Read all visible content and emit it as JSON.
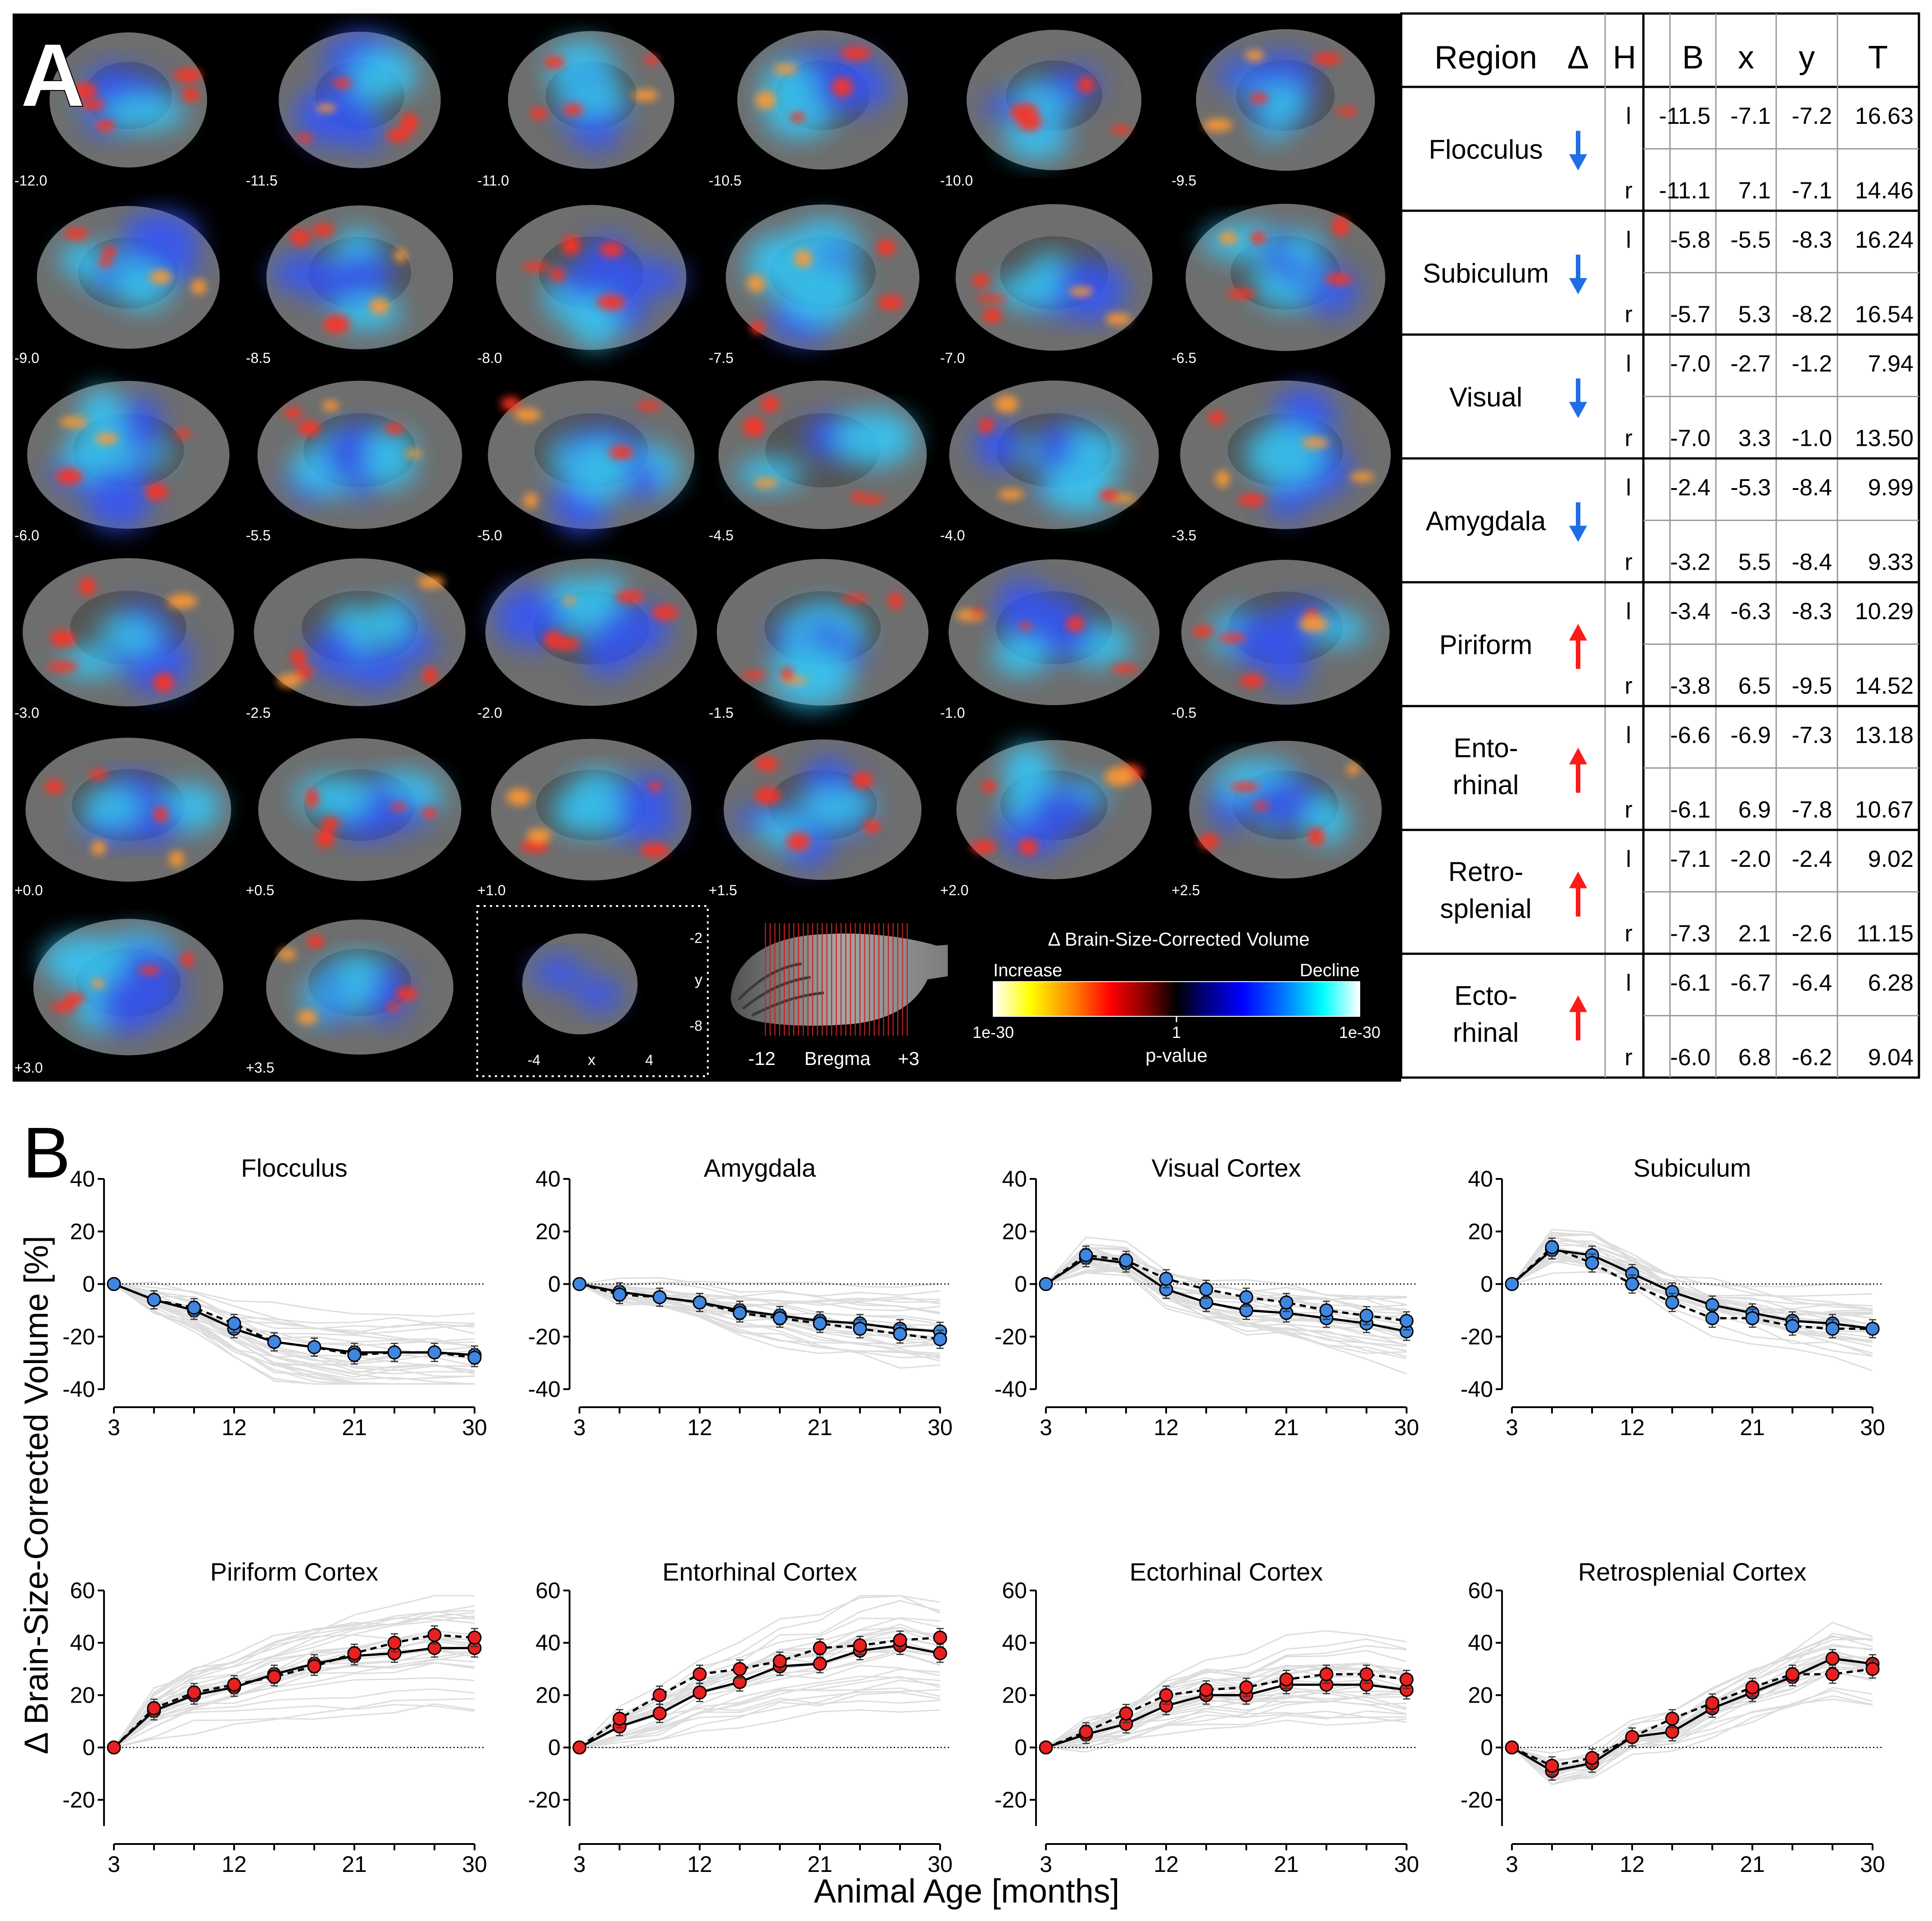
{
  "panel_a": {
    "letter": "A",
    "slice_labels": [
      "-12.0",
      "-11.5",
      "-11.0",
      "-10.5",
      "-10.0",
      "-9.5",
      "-9.0",
      "-8.5",
      "-8.0",
      "-7.5",
      "-7.0",
      "-6.5",
      "-6.0",
      "-5.5",
      "-5.0",
      "-4.5",
      "-4.0",
      "-3.5",
      "-3.0",
      "-2.5",
      "-2.0",
      "-1.5",
      "-1.0",
      "-0.5",
      "+0.0",
      "+0.5",
      "+1.0",
      "+1.5",
      "+2.0",
      "+2.5",
      "+3.0",
      "+3.5"
    ],
    "axis_inset": {
      "y_ticks": [
        "-2",
        "y",
        "-8"
      ],
      "x_ticks": [
        "-4",
        "x",
        "4"
      ]
    },
    "sagittal": {
      "left": "-12",
      "mid": "Bregma",
      "right": "+3"
    },
    "colorbar": {
      "title": "Δ Brain-Size-Corrected Volume",
      "left_label": "Increase",
      "right_label": "Decline",
      "ticks": [
        "1e-30",
        "1",
        "1e-30"
      ],
      "xlabel": "p-value",
      "colors": [
        "#ffffff",
        "#ffff00",
        "#ff8000",
        "#ff0000",
        "#800000",
        "#000000",
        "#000080",
        "#0000ff",
        "#0080ff",
        "#00ffff",
        "#ffffff"
      ]
    }
  },
  "table": {
    "headers": [
      "Region",
      "Δ",
      "H",
      "B",
      "x",
      "y",
      "T"
    ],
    "rows": [
      {
        "region": [
          "Flocculus"
        ],
        "dir": "down",
        "l": [
          "-11.5",
          "-7.1",
          "-7.2",
          "16.63"
        ],
        "r": [
          "-11.1",
          "7.1",
          "-7.1",
          "14.46"
        ]
      },
      {
        "region": [
          "Subiculum"
        ],
        "dir": "down",
        "l": [
          "-5.8",
          "-5.5",
          "-8.3",
          "16.24"
        ],
        "r": [
          "-5.7",
          "5.3",
          "-8.2",
          "16.54"
        ]
      },
      {
        "region": [
          "Visual"
        ],
        "dir": "down",
        "l": [
          "-7.0",
          "-2.7",
          "-1.2",
          "7.94"
        ],
        "r": [
          "-7.0",
          "3.3",
          "-1.0",
          "13.50"
        ]
      },
      {
        "region": [
          "Amygdala"
        ],
        "dir": "down",
        "l": [
          "-2.4",
          "-5.3",
          "-8.4",
          "9.99"
        ],
        "r": [
          "-3.2",
          "5.5",
          "-8.4",
          "9.33"
        ]
      },
      {
        "region": [
          "Piriform"
        ],
        "dir": "up",
        "l": [
          "-3.4",
          "-6.3",
          "-8.3",
          "10.29"
        ],
        "r": [
          "-3.8",
          "6.5",
          "-9.5",
          "14.52"
        ]
      },
      {
        "region": [
          "Ento-",
          "rhinal"
        ],
        "dir": "up",
        "l": [
          "-6.6",
          "-6.9",
          "-7.3",
          "13.18"
        ],
        "r": [
          "-6.1",
          "6.9",
          "-7.8",
          "10.67"
        ]
      },
      {
        "region": [
          "Retro-",
          "splenial"
        ],
        "dir": "up",
        "l": [
          "-7.1",
          "-2.0",
          "-2.4",
          "9.02"
        ],
        "r": [
          "-7.3",
          "2.1",
          "-2.6",
          "11.15"
        ]
      },
      {
        "region": [
          "Ecto-",
          "rhinal"
        ],
        "dir": "up",
        "l": [
          "-6.1",
          "-6.7",
          "-6.4",
          "6.28"
        ],
        "r": [
          "-6.0",
          "6.8",
          "-6.2",
          "9.04"
        ]
      }
    ],
    "hemis": [
      "l",
      "r"
    ],
    "arrow_colors": {
      "down": "#1e6fe6",
      "up": "#ff1a1a"
    }
  },
  "panel_b": {
    "letter": "B",
    "ylabel": "Δ Brain-Size-Corrected Volume [%]",
    "xlabel": "Animal Age [months]"
  },
  "chart_data": [
    {
      "type": "line",
      "title": "Flocculus",
      "x": [
        3,
        6,
        9,
        12,
        15,
        18,
        21,
        24,
        27,
        30
      ],
      "xticks": [
        3,
        12,
        21,
        30
      ],
      "ylim": [
        -40,
        40
      ],
      "yticks": [
        -40,
        -20,
        0,
        20,
        40
      ],
      "color": "#3f86e0",
      "series": [
        {
          "values": [
            0,
            -6,
            -10,
            -17,
            -22,
            -24,
            -26,
            -26,
            -26,
            -27
          ]
        },
        {
          "values": [
            0,
            -6,
            -9,
            -15,
            -22,
            -24,
            -27,
            -26,
            -26,
            -28
          ]
        }
      ]
    },
    {
      "type": "line",
      "title": "Amygdala",
      "x": [
        3,
        6,
        9,
        12,
        15,
        18,
        21,
        24,
        27,
        30
      ],
      "xticks": [
        3,
        12,
        21,
        30
      ],
      "ylim": [
        -40,
        40
      ],
      "yticks": [
        -40,
        -20,
        0,
        20,
        40
      ],
      "color": "#3f86e0",
      "series": [
        {
          "values": [
            0,
            -3,
            -5,
            -7,
            -10,
            -12,
            -14,
            -15,
            -17,
            -18
          ]
        },
        {
          "values": [
            0,
            -4,
            -5,
            -7,
            -11,
            -13,
            -15,
            -17,
            -19,
            -21
          ]
        }
      ]
    },
    {
      "type": "line",
      "title": "Visual Cortex",
      "x": [
        3,
        6,
        9,
        12,
        15,
        18,
        21,
        24,
        27,
        30
      ],
      "xticks": [
        3,
        12,
        21,
        30
      ],
      "ylim": [
        -40,
        40
      ],
      "yticks": [
        -40,
        -20,
        0,
        20,
        40
      ],
      "color": "#3f86e0",
      "series": [
        {
          "values": [
            0,
            10,
            8,
            -2,
            -7,
            -10,
            -11,
            -13,
            -15,
            -18
          ]
        },
        {
          "values": [
            0,
            11,
            9,
            2,
            -2,
            -5,
            -7,
            -10,
            -12,
            -14
          ]
        }
      ]
    },
    {
      "type": "line",
      "title": "Subiculum",
      "x": [
        3,
        6,
        9,
        12,
        15,
        18,
        21,
        24,
        27,
        30
      ],
      "xticks": [
        3,
        12,
        21,
        30
      ],
      "ylim": [
        -40,
        40
      ],
      "yticks": [
        -40,
        -20,
        0,
        20,
        40
      ],
      "color": "#3f86e0",
      "series": [
        {
          "values": [
            0,
            13,
            11,
            4,
            -3,
            -8,
            -11,
            -14,
            -15,
            -17
          ]
        },
        {
          "values": [
            0,
            14,
            8,
            0,
            -7,
            -13,
            -13,
            -16,
            -17,
            -17
          ]
        }
      ]
    },
    {
      "type": "line",
      "title": "Piriform Cortex",
      "x": [
        3,
        6,
        9,
        12,
        15,
        18,
        21,
        24,
        27,
        30
      ],
      "xticks": [
        3,
        12,
        21,
        30
      ],
      "ylim": [
        -30,
        60
      ],
      "yticks": [
        -20,
        0,
        20,
        40,
        60
      ],
      "color": "#e82020",
      "series": [
        {
          "values": [
            0,
            14,
            20,
            23,
            28,
            32,
            35,
            36,
            38,
            38
          ]
        },
        {
          "values": [
            0,
            15,
            21,
            24,
            27,
            31,
            36,
            40,
            43,
            42
          ]
        }
      ]
    },
    {
      "type": "line",
      "title": "Entorhinal Cortex",
      "x": [
        3,
        6,
        9,
        12,
        15,
        18,
        21,
        24,
        27,
        30
      ],
      "xticks": [
        3,
        12,
        21,
        30
      ],
      "ylim": [
        -30,
        60
      ],
      "yticks": [
        -20,
        0,
        20,
        40,
        60
      ],
      "color": "#e82020",
      "series": [
        {
          "values": [
            0,
            8,
            13,
            21,
            25,
            31,
            32,
            37,
            39,
            36
          ]
        },
        {
          "values": [
            0,
            11,
            20,
            28,
            30,
            33,
            38,
            39,
            41,
            42
          ]
        }
      ]
    },
    {
      "type": "line",
      "title": "Ectorhinal Cortex",
      "x": [
        3,
        6,
        9,
        12,
        15,
        18,
        21,
        24,
        27,
        30
      ],
      "xticks": [
        3,
        12,
        21,
        30
      ],
      "ylim": [
        -30,
        60
      ],
      "yticks": [
        -20,
        0,
        20,
        40,
        60
      ],
      "color": "#e82020",
      "series": [
        {
          "values": [
            0,
            5,
            9,
            16,
            20,
            20,
            24,
            24,
            24,
            22
          ]
        },
        {
          "values": [
            0,
            6,
            13,
            20,
            22,
            23,
            26,
            28,
            28,
            26
          ]
        }
      ]
    },
    {
      "type": "line",
      "title": "Retrosplenial Cortex",
      "x": [
        3,
        6,
        9,
        12,
        15,
        18,
        21,
        24,
        27,
        30
      ],
      "xticks": [
        3,
        12,
        21,
        30
      ],
      "ylim": [
        -30,
        60
      ],
      "yticks": [
        -20,
        0,
        20,
        40,
        60
      ],
      "color": "#e82020",
      "series": [
        {
          "values": [
            0,
            -9,
            -6,
            4,
            6,
            15,
            21,
            27,
            34,
            32
          ]
        },
        {
          "values": [
            0,
            -7,
            -4,
            4,
            11,
            17,
            23,
            28,
            28,
            30
          ]
        }
      ]
    }
  ]
}
